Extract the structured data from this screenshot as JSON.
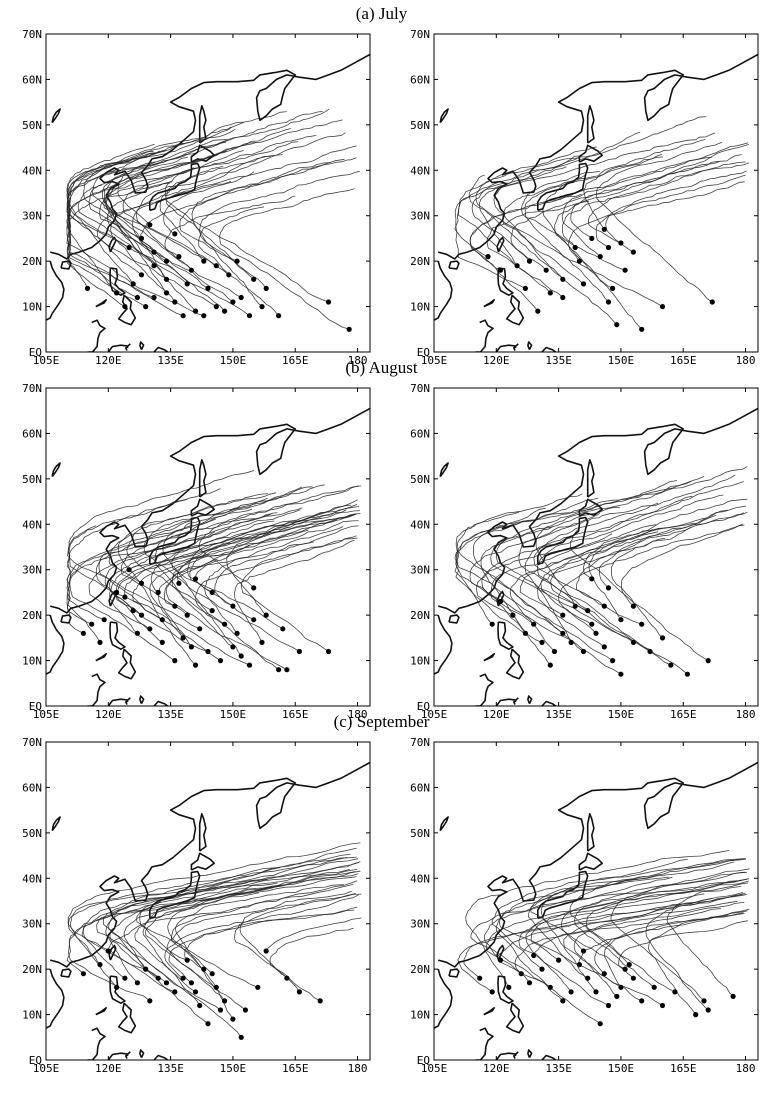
{
  "rows": [
    {
      "title": "(a)  July"
    },
    {
      "title": "(b)  August"
    },
    {
      "title": "(c)  September"
    }
  ],
  "axes": {
    "lat_ticks": [
      "EQ",
      "10N",
      "20N",
      "30N",
      "40N",
      "50N",
      "60N",
      "70N"
    ],
    "lon_ticks": [
      "105E",
      "120E",
      "135E",
      "150E",
      "165E",
      "180"
    ],
    "lon_range": [
      105,
      183
    ],
    "lat_range": [
      0,
      70
    ]
  },
  "colors": {
    "coast": "#111111",
    "track": "#222222",
    "genesis": "#000000",
    "frame": "#000000"
  },
  "chart_data": [
    {
      "type": "scatter",
      "name": "",
      "panel": "July-left",
      "genesis_points": [
        [
          178,
          5
        ],
        [
          173,
          11
        ],
        [
          161,
          8
        ],
        [
          157,
          10
        ],
        [
          154,
          8
        ],
        [
          152,
          12
        ],
        [
          150,
          11
        ],
        [
          148,
          9
        ],
        [
          146,
          10
        ],
        [
          143,
          8
        ],
        [
          141,
          9
        ],
        [
          138,
          8
        ],
        [
          136,
          11
        ],
        [
          134,
          13
        ],
        [
          131,
          12
        ],
        [
          129,
          10
        ],
        [
          127,
          12
        ],
        [
          126,
          15
        ],
        [
          128,
          17
        ],
        [
          131,
          19
        ],
        [
          134,
          20
        ],
        [
          137,
          21
        ],
        [
          140,
          18
        ],
        [
          143,
          20
        ],
        [
          146,
          19
        ],
        [
          149,
          17
        ],
        [
          151,
          20
        ],
        [
          155,
          16
        ],
        [
          158,
          14
        ],
        [
          144,
          14
        ],
        [
          139,
          15
        ],
        [
          134,
          16
        ],
        [
          131,
          22
        ],
        [
          128,
          25
        ],
        [
          125,
          23
        ],
        [
          136,
          26
        ],
        [
          130,
          28
        ],
        [
          115,
          14
        ],
        [
          122,
          13
        ],
        [
          124,
          10
        ]
      ]
    },
    {
      "type": "scatter",
      "name": "",
      "panel": "July-right",
      "genesis_points": [
        [
          172,
          11
        ],
        [
          160,
          10
        ],
        [
          155,
          5
        ],
        [
          149,
          6
        ],
        [
          147,
          11
        ],
        [
          148,
          14
        ],
        [
          151,
          18
        ],
        [
          153,
          22
        ],
        [
          150,
          24
        ],
        [
          147,
          23
        ],
        [
          140,
          20
        ],
        [
          141,
          15
        ],
        [
          136,
          12
        ],
        [
          133,
          13
        ],
        [
          130,
          9
        ],
        [
          127,
          14
        ],
        [
          125,
          19
        ],
        [
          121,
          18
        ],
        [
          118,
          21
        ],
        [
          128,
          20
        ],
        [
          132,
          18
        ],
        [
          136,
          16
        ],
        [
          139,
          23
        ],
        [
          145,
          21
        ],
        [
          143,
          25
        ],
        [
          146,
          27
        ]
      ]
    },
    {
      "type": "scatter",
      "name": "",
      "panel": "August-left",
      "genesis_points": [
        [
          173,
          12
        ],
        [
          166,
          12
        ],
        [
          163,
          8
        ],
        [
          161,
          8
        ],
        [
          157,
          14
        ],
        [
          154,
          9
        ],
        [
          152,
          11
        ],
        [
          150,
          13
        ],
        [
          147,
          10
        ],
        [
          144,
          12
        ],
        [
          141,
          9
        ],
        [
          140,
          13
        ],
        [
          138,
          15
        ],
        [
          136,
          10
        ],
        [
          133,
          14
        ],
        [
          130,
          17
        ],
        [
          128,
          20
        ],
        [
          126,
          21
        ],
        [
          124,
          24
        ],
        [
          122,
          25
        ],
        [
          119,
          19
        ],
        [
          116,
          18
        ],
        [
          114,
          16
        ],
        [
          118,
          14
        ],
        [
          127,
          16
        ],
        [
          133,
          19
        ],
        [
          136,
          22
        ],
        [
          139,
          20
        ],
        [
          142,
          17
        ],
        [
          145,
          21
        ],
        [
          148,
          18
        ],
        [
          151,
          16
        ],
        [
          155,
          19
        ],
        [
          150,
          22
        ],
        [
          145,
          25
        ],
        [
          141,
          28
        ],
        [
          137,
          27
        ],
        [
          132,
          25
        ],
        [
          128,
          27
        ],
        [
          125,
          30
        ],
        [
          155,
          26
        ],
        [
          158,
          20
        ],
        [
          162,
          17
        ]
      ]
    },
    {
      "type": "scatter",
      "name": "",
      "panel": "August-right",
      "genesis_points": [
        [
          171,
          10
        ],
        [
          166,
          7
        ],
        [
          162,
          9
        ],
        [
          157,
          12
        ],
        [
          153,
          14
        ],
        [
          150,
          7
        ],
        [
          148,
          10
        ],
        [
          146,
          13
        ],
        [
          144,
          16
        ],
        [
          143,
          18
        ],
        [
          141,
          12
        ],
        [
          138,
          14
        ],
        [
          136,
          16
        ],
        [
          134,
          12
        ],
        [
          133,
          9
        ],
        [
          131,
          14
        ],
        [
          129,
          18
        ],
        [
          127,
          16
        ],
        [
          124,
          20
        ],
        [
          121,
          23
        ],
        [
          119,
          18
        ],
        [
          136,
          20
        ],
        [
          139,
          22
        ],
        [
          142,
          21
        ],
        [
          146,
          22
        ],
        [
          150,
          19
        ],
        [
          153,
          22
        ],
        [
          147,
          26
        ],
        [
          143,
          28
        ],
        [
          155,
          18
        ],
        [
          160,
          15
        ]
      ]
    },
    {
      "type": "scatter",
      "name": "",
      "panel": "September-left",
      "genesis_points": [
        [
          171,
          13
        ],
        [
          166,
          15
        ],
        [
          163,
          18
        ],
        [
          158,
          24
        ],
        [
          156,
          16
        ],
        [
          153,
          11
        ],
        [
          152,
          5
        ],
        [
          150,
          9
        ],
        [
          148,
          13
        ],
        [
          146,
          16
        ],
        [
          145,
          19
        ],
        [
          144,
          8
        ],
        [
          142,
          12
        ],
        [
          140,
          17
        ],
        [
          138,
          18
        ],
        [
          136,
          15
        ],
        [
          134,
          17
        ],
        [
          132,
          18
        ],
        [
          130,
          13
        ],
        [
          127,
          17
        ],
        [
          124,
          18
        ],
        [
          122,
          16
        ],
        [
          118,
          21
        ],
        [
          114,
          19
        ],
        [
          120,
          24
        ],
        [
          129,
          20
        ],
        [
          141,
          15
        ],
        [
          147,
          11
        ],
        [
          143,
          20
        ],
        [
          139,
          22
        ]
      ]
    },
    {
      "type": "scatter",
      "name": "",
      "panel": "September-right",
      "genesis_points": [
        [
          177,
          14
        ],
        [
          171,
          11
        ],
        [
          170,
          13
        ],
        [
          168,
          10
        ],
        [
          163,
          15
        ],
        [
          160,
          12
        ],
        [
          158,
          16
        ],
        [
          155,
          13
        ],
        [
          153,
          18
        ],
        [
          151,
          20
        ],
        [
          150,
          16
        ],
        [
          149,
          14
        ],
        [
          147,
          12
        ],
        [
          145,
          8
        ],
        [
          144,
          15
        ],
        [
          142,
          18
        ],
        [
          140,
          21
        ],
        [
          138,
          15
        ],
        [
          136,
          13
        ],
        [
          133,
          16
        ],
        [
          131,
          20
        ],
        [
          128,
          17
        ],
        [
          126,
          19
        ],
        [
          123,
          16
        ],
        [
          119,
          15
        ],
        [
          116,
          18
        ],
        [
          121,
          22
        ],
        [
          129,
          23
        ],
        [
          135,
          22
        ],
        [
          141,
          24
        ],
        [
          146,
          19
        ],
        [
          152,
          21
        ]
      ]
    }
  ]
}
